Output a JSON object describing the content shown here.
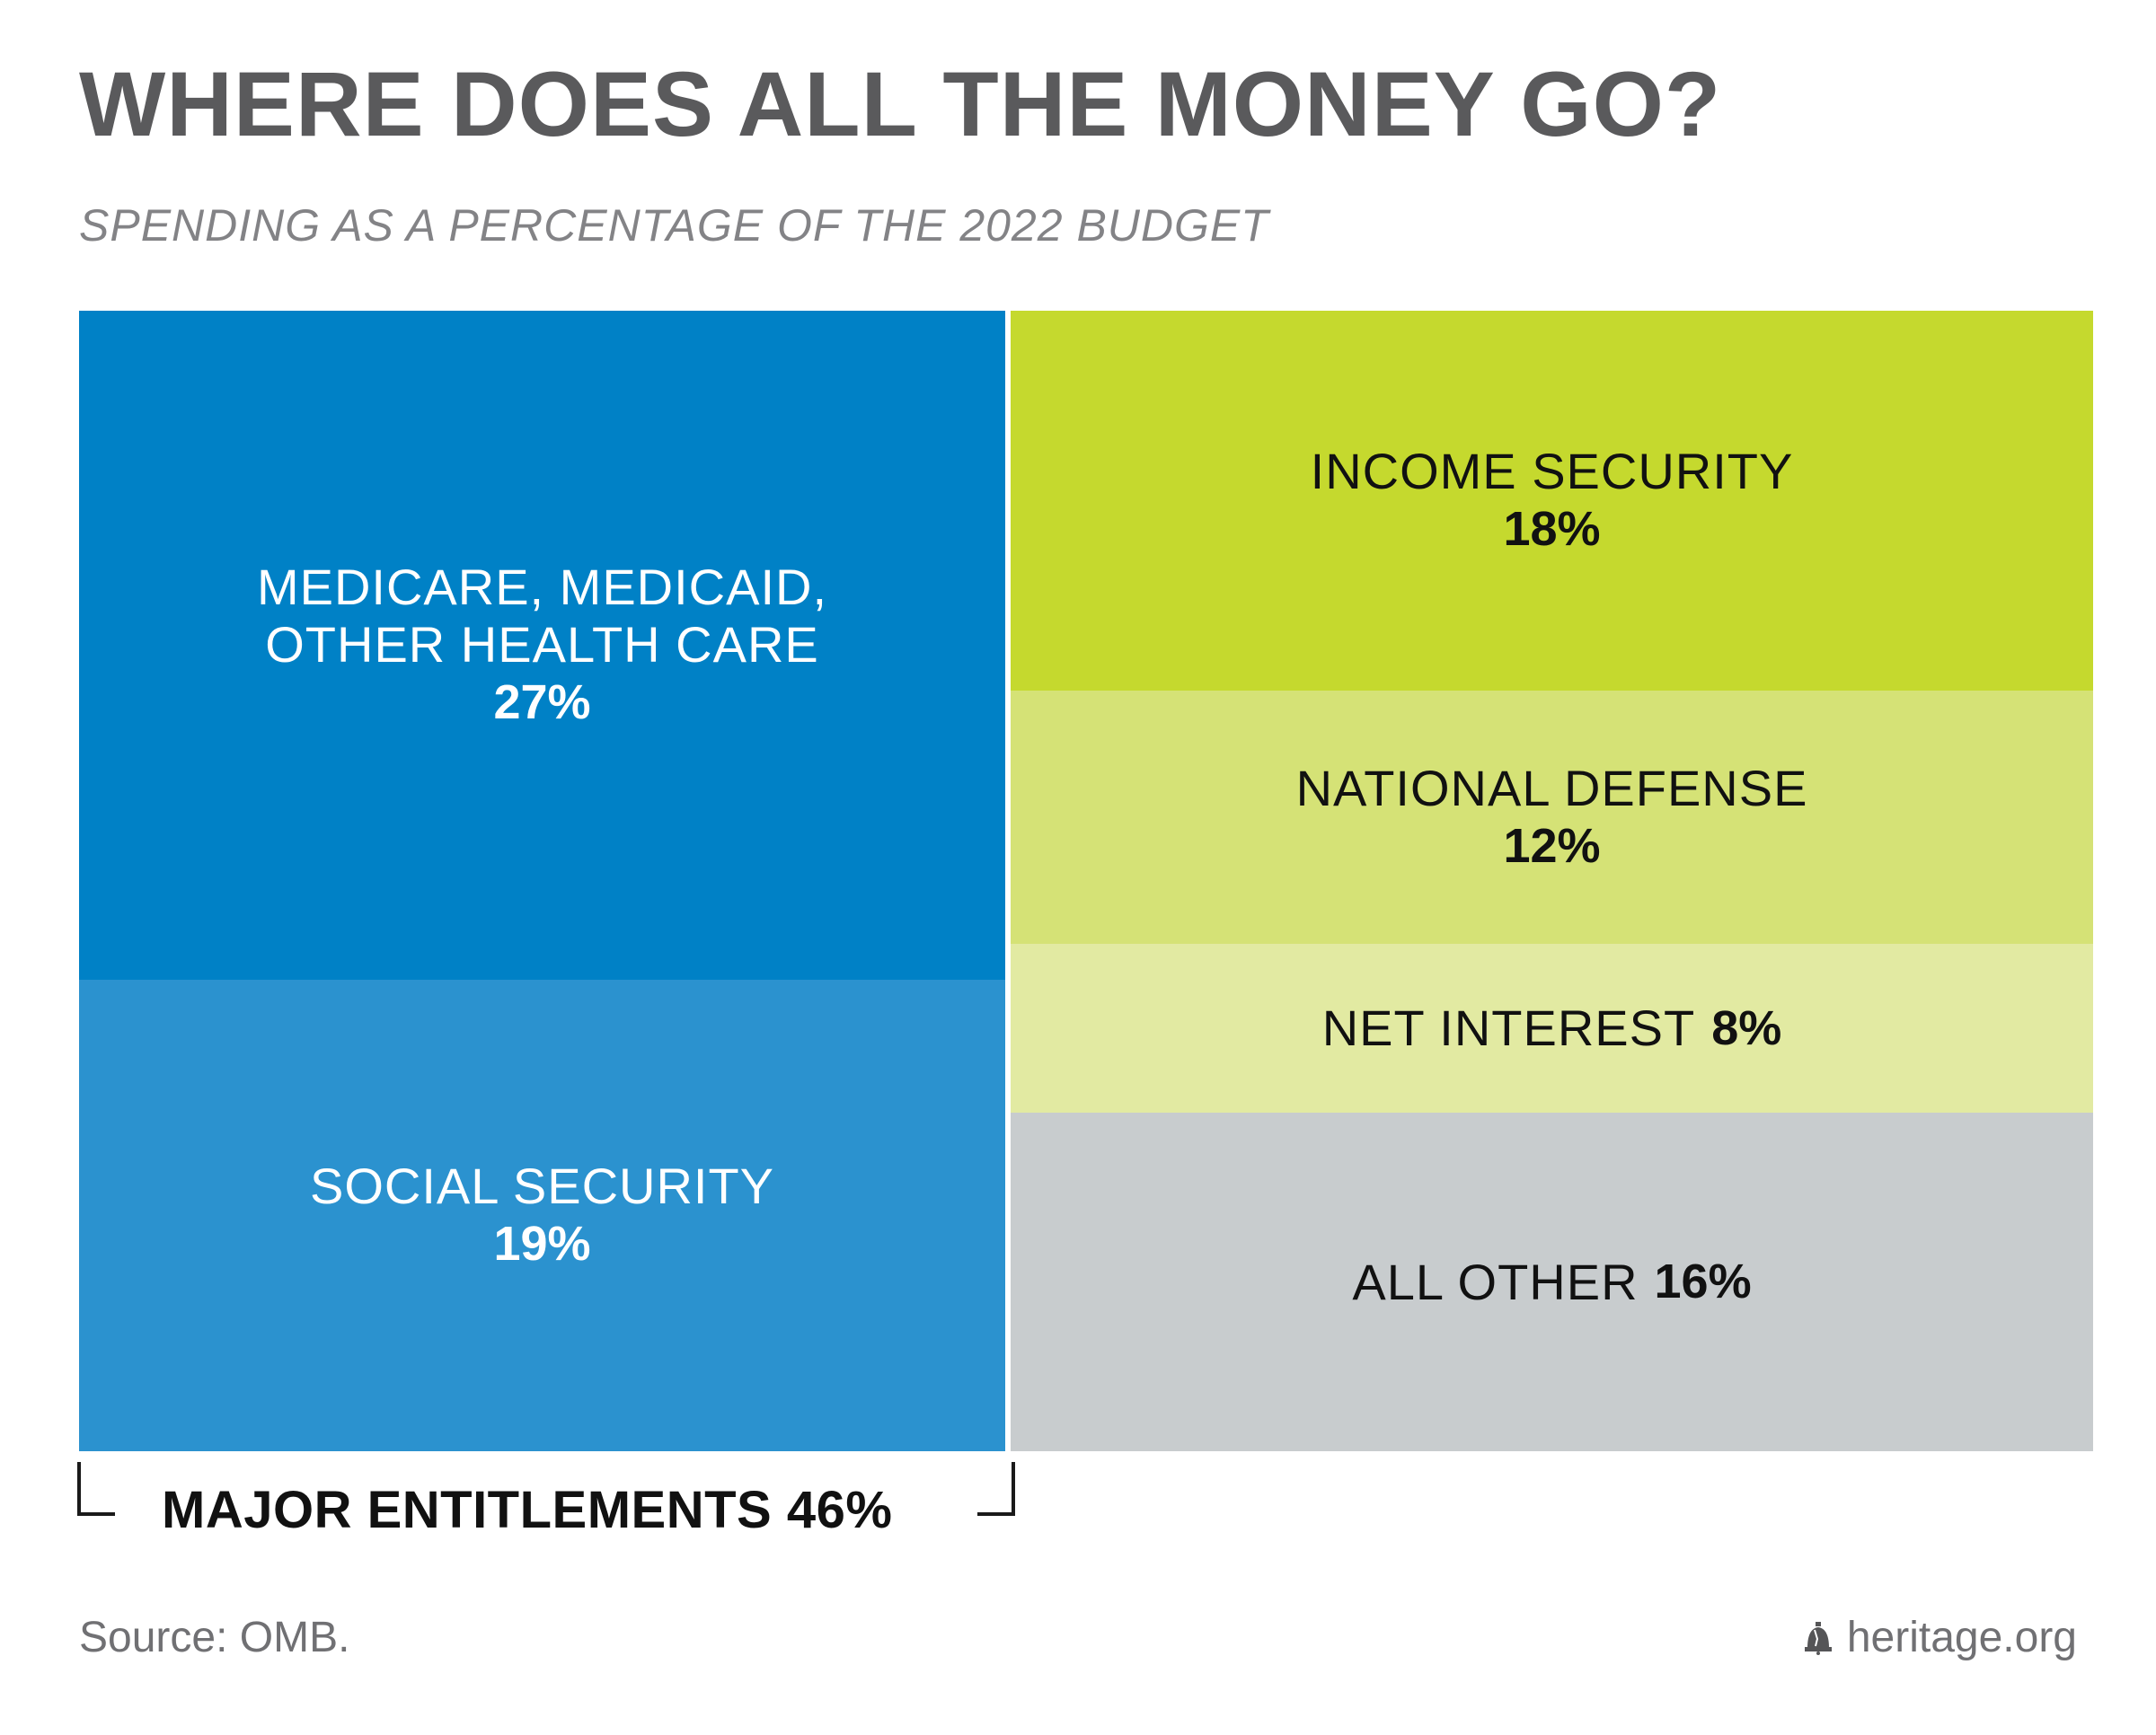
{
  "chart_data": {
    "type": "treemap",
    "title": "WHERE DOES ALL THE MONEY GO?",
    "subtitle": "SPENDING AS A PERCENTAGE OF THE 2022 BUDGET",
    "value_suffix": "%",
    "tiles": [
      {
        "id": "medicare",
        "label": "MEDICARE, MEDICAID,\nOTHER HEALTH CARE",
        "value": 27,
        "group": "Major Entitlements",
        "color": "#0081c6",
        "text_color": "#ffffff"
      },
      {
        "id": "social-security",
        "label": "SOCIAL SECURITY",
        "value": 19,
        "group": "Major Entitlements",
        "color": "#2b92cf",
        "text_color": "#ffffff"
      },
      {
        "id": "income-security",
        "label": "INCOME SECURITY",
        "value": 18,
        "group": "",
        "color": "#c5d92e",
        "text_color": "#111111"
      },
      {
        "id": "national-defense",
        "label": "NATIONAL DEFENSE",
        "value": 12,
        "group": "",
        "color": "#d5e276",
        "text_color": "#111111"
      },
      {
        "id": "net-interest",
        "label": "NET INTEREST",
        "value": 8,
        "group": "",
        "color": "#e2eaa2",
        "text_color": "#111111"
      },
      {
        "id": "all-other",
        "label": "ALL OTHER",
        "value": 16,
        "group": "",
        "color": "#c8ccce",
        "text_color": "#111111"
      }
    ],
    "group_annotation": {
      "label": "MAJOR ENTITLEMENTS",
      "value": 46
    }
  },
  "footer": {
    "source": "Source: OMB.",
    "brand": "heritage.org",
    "brand_icon": "liberty-bell-icon"
  }
}
